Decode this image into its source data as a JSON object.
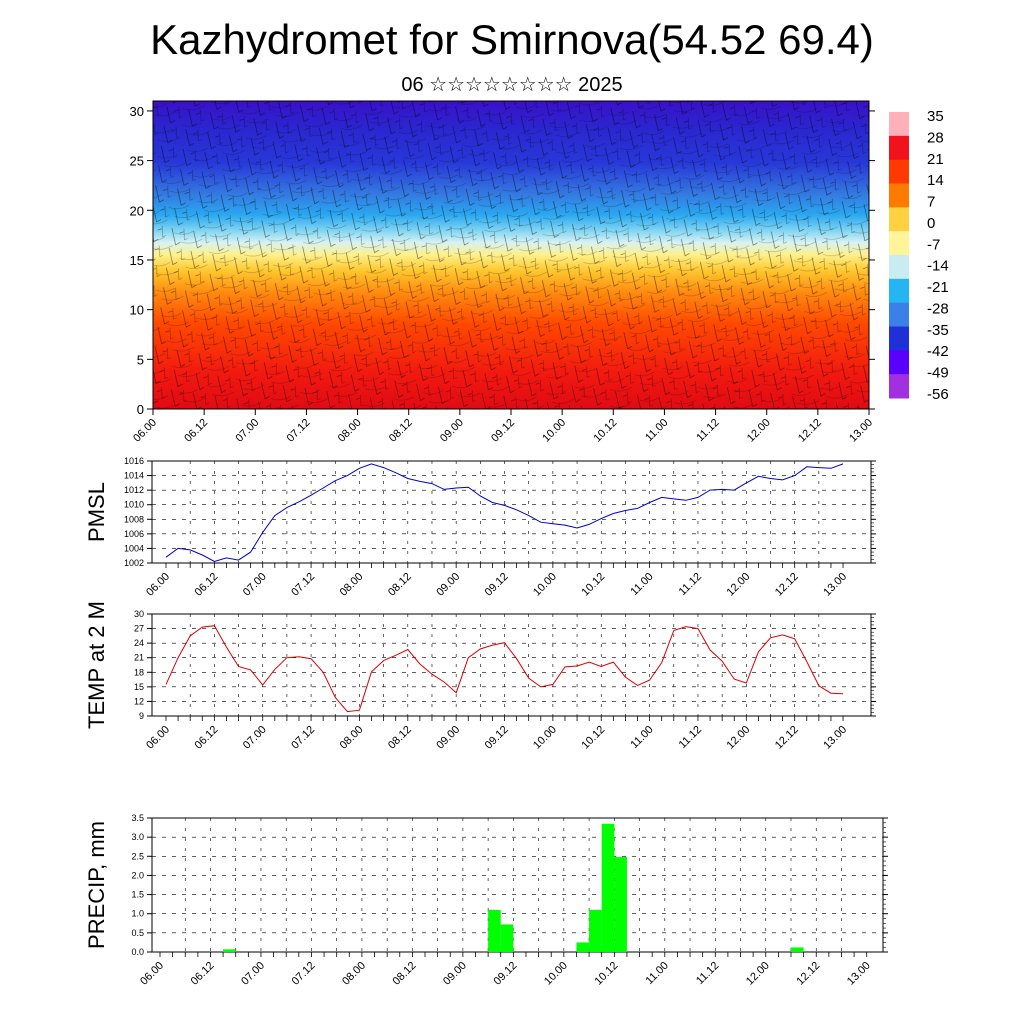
{
  "header": {
    "title": "Kazhydromet for Smirnova(54.52 69.4)",
    "subtitle": "06 ☆☆☆☆☆☆☆☆ 2025"
  },
  "time_ticks": [
    "06.00",
    "06.12",
    "07.00",
    "07.12",
    "08.00",
    "08.12",
    "09.00",
    "09.12",
    "10.00",
    "10.12",
    "11.00",
    "11.12",
    "12.00",
    "12.12",
    "13.00"
  ],
  "chart_data": [
    {
      "type": "heatmap",
      "id": "temperature-cross-section",
      "title": "",
      "x_ticks": [
        "06.00",
        "06.12",
        "07.00",
        "07.12",
        "08.00",
        "08.12",
        "09.00",
        "09.12",
        "10.00",
        "10.12",
        "11.00",
        "11.12",
        "12.00",
        "12.12",
        "13.00"
      ],
      "y_ticks": [
        0,
        5,
        10,
        15,
        20,
        25,
        30
      ],
      "ylim": [
        0,
        31
      ],
      "colorbar": {
        "labels": [
          "35",
          "28",
          "21",
          "14",
          "7",
          "0",
          "-7",
          "-14",
          "-21",
          "-28",
          "-35",
          "-42",
          "-49",
          "-56"
        ],
        "colors": [
          "#ffb0b8",
          "#f2121e",
          "#ff3a00",
          "#ff7a00",
          "#ffd040",
          "#fff49a",
          "#c8ecf0",
          "#25b5f2",
          "#3a80e6",
          "#2030d8",
          "#5a00ff",
          "#a030e0"
        ]
      },
      "overlay": "wind barbs"
    },
    {
      "type": "line",
      "id": "pmsl",
      "ylabel": "PMSL",
      "y_ticks": [
        1002,
        1004,
        1006,
        1008,
        1010,
        1012,
        1014,
        1016
      ],
      "ylim": [
        1002,
        1016
      ],
      "color": "#0000cc",
      "x_ticks": [
        "06.00",
        "06.12",
        "07.00",
        "07.12",
        "08.00",
        "08.12",
        "09.00",
        "09.12",
        "10.00",
        "10.12",
        "11.00",
        "11.12",
        "12.00",
        "12.12",
        "13.00"
      ],
      "values": [
        1002.8,
        1004.0,
        1003.8,
        1003.1,
        1002.2,
        1002.7,
        1002.4,
        1003.5,
        1006.2,
        1008.5,
        1009.6,
        1010.4,
        1011.3,
        1012.3,
        1013.3,
        1014.0,
        1015.0,
        1015.6,
        1015.1,
        1014.4,
        1013.6,
        1013.2,
        1012.9,
        1012.1,
        1012.3,
        1012.4,
        1011.2,
        1010.3,
        1009.9,
        1009.3,
        1008.5,
        1007.6,
        1007.4,
        1007.2,
        1006.8,
        1007.3,
        1008.1,
        1008.8,
        1009.2,
        1009.5,
        1010.3,
        1011.0,
        1010.8,
        1010.6,
        1011.0,
        1012.0,
        1012.1,
        1012.0,
        1013.0,
        1013.9,
        1013.6,
        1013.4,
        1014.0,
        1015.2,
        1015.1,
        1015.0,
        1015.6
      ]
    },
    {
      "type": "line",
      "id": "temp-2m",
      "ylabel": "TEMP at 2 M",
      "y_ticks": [
        9,
        12,
        15,
        18,
        21,
        24,
        27,
        30
      ],
      "ylim": [
        9,
        30
      ],
      "color": "#dd0000",
      "x_ticks": [
        "06.00",
        "06.12",
        "07.00",
        "07.12",
        "08.00",
        "08.12",
        "09.00",
        "09.12",
        "10.00",
        "10.12",
        "11.00",
        "11.12",
        "12.00",
        "12.12",
        "13.00"
      ],
      "values": [
        15.5,
        21.0,
        25.5,
        27.3,
        27.6,
        23.2,
        19.2,
        18.5,
        15.4,
        18.6,
        21.0,
        21.2,
        20.8,
        18.0,
        12.8,
        9.9,
        10.2,
        18.1,
        20.4,
        21.5,
        22.7,
        19.7,
        17.6,
        16.0,
        13.8,
        21.0,
        22.8,
        23.6,
        24.1,
        20.8,
        16.8,
        15.0,
        15.5,
        19.1,
        19.3,
        20.1,
        19.2,
        20.1,
        17.0,
        15.3,
        16.4,
        20.0,
        26.6,
        27.4,
        27.0,
        22.6,
        20.3,
        16.6,
        15.8,
        22.2,
        25.1,
        25.7,
        24.9,
        20.2,
        15.2,
        13.7,
        13.6
      ]
    },
    {
      "type": "bar",
      "id": "precip",
      "ylabel": "PRECIP, mm",
      "y_ticks": [
        "0.0",
        "0.5",
        "1.0",
        "1.5",
        "2.0",
        "2.5",
        "3.0",
        "3.5"
      ],
      "ylim": [
        0,
        3.5
      ],
      "color": "#00ff00",
      "x_ticks": [
        "06.00",
        "06.12",
        "07.00",
        "07.12",
        "08.00",
        "08.12",
        "09.00",
        "09.12",
        "10.00",
        "10.12",
        "11.00",
        "11.12",
        "12.00",
        "12.12",
        "13.00"
      ],
      "bars": [
        {
          "x": 5,
          "value": 0.07
        },
        {
          "x": 26,
          "value": 1.1
        },
        {
          "x": 27,
          "value": 0.72
        },
        {
          "x": 33,
          "value": 0.25
        },
        {
          "x": 34,
          "value": 1.1
        },
        {
          "x": 35,
          "value": 3.35
        },
        {
          "x": 36,
          "value": 2.48
        },
        {
          "x": 50,
          "value": 0.12
        }
      ]
    }
  ]
}
